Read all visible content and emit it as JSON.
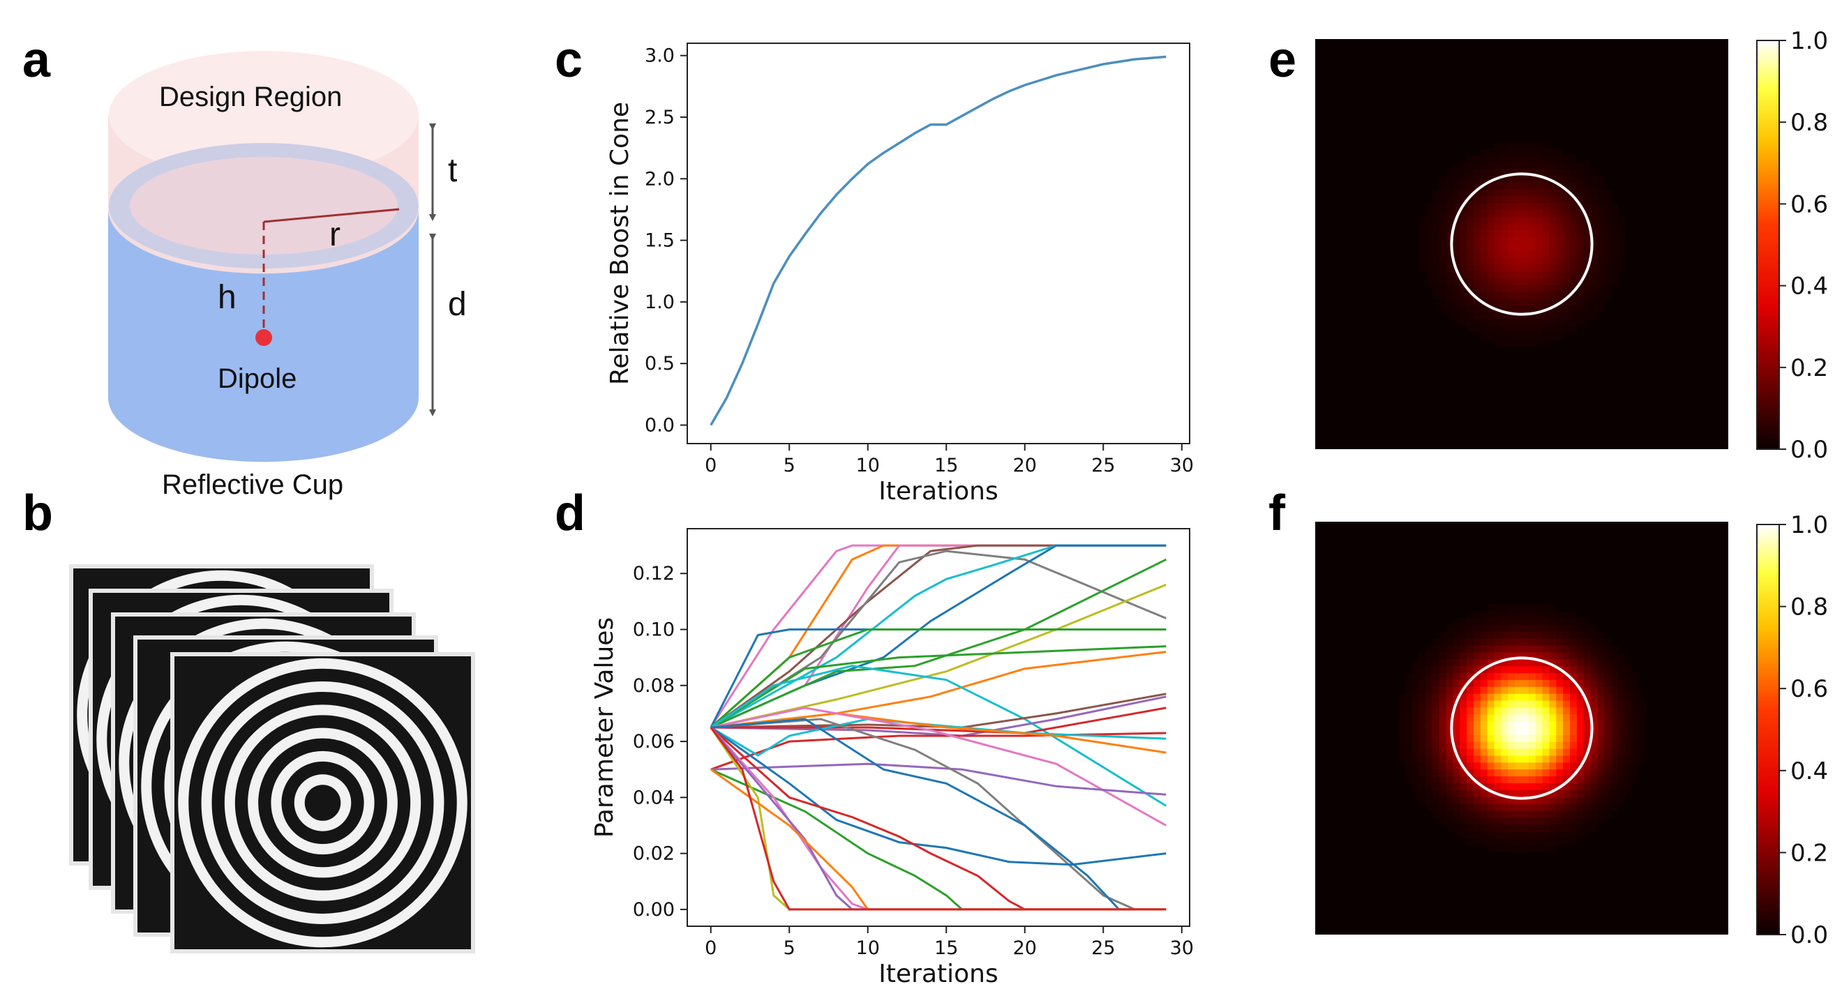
{
  "panels": {
    "a": {
      "letter": "a",
      "design_region": "Design Region",
      "dipole": "Dipole",
      "reflective_cup": "Reflective Cup",
      "dims": {
        "t": "t",
        "r": "r",
        "h": "h",
        "d": "d"
      }
    },
    "b": {
      "letter": "b",
      "ring_count": 6,
      "layers": 5
    },
    "c": {
      "letter": "c"
    },
    "d": {
      "letter": "d"
    },
    "e": {
      "letter": "e"
    },
    "f": {
      "letter": "f"
    }
  },
  "colors": {
    "line_blue": "#4c8fbe",
    "design_region_fill": "#f9dede",
    "cup_fill": "#9bbaf0",
    "ring": "#c9cce6",
    "dipole": "#e8323a",
    "dim_line": "#a03030",
    "arrow": "#555555"
  },
  "chart_data": [
    {
      "id": "c",
      "type": "line",
      "title": "",
      "xlabel": "Iterations",
      "ylabel": "Relative Boost in Cone",
      "xlim": [
        -1.5,
        30.5
      ],
      "ylim": [
        -0.15,
        3.1
      ],
      "xticks": [
        0,
        5,
        10,
        15,
        20,
        25,
        30
      ],
      "yticks": [
        0.0,
        0.5,
        1.0,
        1.5,
        2.0,
        2.5,
        3.0
      ],
      "ytick_labels": [
        "0.0",
        "0.5",
        "1.0",
        "1.5",
        "2.0",
        "2.5",
        "3.0"
      ],
      "x": [
        0,
        1,
        2,
        3,
        4,
        5,
        6,
        7,
        8,
        9,
        10,
        11,
        12,
        13,
        14,
        15,
        16,
        17,
        18,
        19,
        20,
        21,
        22,
        23,
        24,
        25,
        26,
        27,
        28,
        29
      ],
      "values": [
        0.0,
        0.22,
        0.5,
        0.82,
        1.15,
        1.37,
        1.55,
        1.72,
        1.87,
        2.0,
        2.12,
        2.21,
        2.29,
        2.37,
        2.44,
        2.44,
        2.51,
        2.58,
        2.65,
        2.71,
        2.76,
        2.8,
        2.84,
        2.87,
        2.9,
        2.93,
        2.95,
        2.97,
        2.98,
        2.99
      ]
    },
    {
      "id": "d",
      "type": "line",
      "title": "",
      "xlabel": "Iterations",
      "ylabel": "Parameter Values",
      "xlim": [
        -1.5,
        30.5
      ],
      "ylim": [
        -0.006,
        0.136
      ],
      "xticks": [
        0,
        5,
        10,
        15,
        20,
        25,
        30
      ],
      "yticks": [
        0.0,
        0.02,
        0.04,
        0.06,
        0.08,
        0.1,
        0.12
      ],
      "ytick_labels": [
        "0.00",
        "0.02",
        "0.04",
        "0.06",
        "0.08",
        "0.10",
        "0.12"
      ],
      "series": [
        {
          "color": "#e377c2",
          "values": [
            [
              0,
              0.065
            ],
            [
              4,
              0.1
            ],
            [
              8,
              0.128
            ],
            [
              9,
              0.13
            ],
            [
              29,
              0.13
            ]
          ]
        },
        {
          "color": "#ff7f0e",
          "values": [
            [
              0,
              0.065
            ],
            [
              5,
              0.09
            ],
            [
              9,
              0.125
            ],
            [
              11,
              0.13
            ],
            [
              29,
              0.13
            ]
          ]
        },
        {
          "color": "#e377c2",
          "values": [
            [
              0,
              0.065
            ],
            [
              6,
              0.08
            ],
            [
              10,
              0.115
            ],
            [
              12,
              0.13
            ],
            [
              29,
              0.13
            ]
          ]
        },
        {
          "color": "#8c564b",
          "values": [
            [
              0,
              0.065
            ],
            [
              5,
              0.085
            ],
            [
              10,
              0.11
            ],
            [
              14,
              0.128
            ],
            [
              17,
              0.13
            ],
            [
              29,
              0.13
            ]
          ]
        },
        {
          "color": "#7f7f7f",
          "values": [
            [
              0,
              0.065
            ],
            [
              7,
              0.09
            ],
            [
              12,
              0.124
            ],
            [
              15,
              0.128
            ],
            [
              20,
              0.125
            ],
            [
              29,
              0.104
            ]
          ]
        },
        {
          "color": "#17becf",
          "values": [
            [
              0,
              0.065
            ],
            [
              8,
              0.09
            ],
            [
              13,
              0.112
            ],
            [
              15,
              0.118
            ],
            [
              18,
              0.123
            ],
            [
              22,
              0.13
            ],
            [
              29,
              0.13
            ]
          ]
        },
        {
          "color": "#1f77b4",
          "values": [
            [
              0,
              0.065
            ],
            [
              3,
              0.098
            ],
            [
              5,
              0.1
            ],
            [
              29,
              0.1
            ]
          ]
        },
        {
          "color": "#1f77b4",
          "values": [
            [
              0,
              0.065
            ],
            [
              6,
              0.08
            ],
            [
              11,
              0.09
            ],
            [
              14,
              0.103
            ],
            [
              19,
              0.12
            ],
            [
              22,
              0.13
            ],
            [
              29,
              0.13
            ]
          ]
        },
        {
          "color": "#2ca02c",
          "values": [
            [
              0,
              0.065
            ],
            [
              8,
              0.085
            ],
            [
              13,
              0.087
            ],
            [
              20,
              0.1
            ],
            [
              29,
              0.125
            ]
          ]
        },
        {
          "color": "#bcbd22",
          "values": [
            [
              0,
              0.065
            ],
            [
              8,
              0.075
            ],
            [
              15,
              0.085
            ],
            [
              22,
              0.1
            ],
            [
              29,
              0.116
            ]
          ]
        },
        {
          "color": "#2ca02c",
          "values": [
            [
              0,
              0.065
            ],
            [
              6,
              0.086
            ],
            [
              12,
              0.09
            ],
            [
              29,
              0.094
            ]
          ]
        },
        {
          "color": "#ff7f0e",
          "values": [
            [
              0,
              0.065
            ],
            [
              8,
              0.07
            ],
            [
              14,
              0.076
            ],
            [
              20,
              0.086
            ],
            [
              29,
              0.092
            ]
          ]
        },
        {
          "color": "#2ca02c",
          "values": [
            [
              0,
              0.065
            ],
            [
              5,
              0.09
            ],
            [
              10,
              0.1
            ],
            [
              29,
              0.1
            ]
          ]
        },
        {
          "color": "#17becf",
          "values": [
            [
              0,
              0.065
            ],
            [
              4,
              0.08
            ],
            [
              9,
              0.087
            ],
            [
              15,
              0.082
            ],
            [
              20,
              0.068
            ],
            [
              29,
              0.037
            ]
          ]
        },
        {
          "color": "#8c564b",
          "values": [
            [
              0,
              0.065
            ],
            [
              10,
              0.066
            ],
            [
              16,
              0.065
            ],
            [
              22,
              0.07
            ],
            [
              29,
              0.077
            ]
          ]
        },
        {
          "color": "#9467bd",
          "values": [
            [
              0,
              0.065
            ],
            [
              10,
              0.064
            ],
            [
              16,
              0.062
            ],
            [
              22,
              0.068
            ],
            [
              29,
              0.076
            ]
          ]
        },
        {
          "color": "#d62728",
          "values": [
            [
              0,
              0.065
            ],
            [
              10,
              0.065
            ],
            [
              20,
              0.063
            ],
            [
              29,
              0.072
            ]
          ]
        },
        {
          "color": "#d62728",
          "values": [
            [
              0,
              0.05
            ],
            [
              5,
              0.06
            ],
            [
              12,
              0.062
            ],
            [
              20,
              0.062
            ],
            [
              29,
              0.063
            ]
          ]
        },
        {
          "color": "#17becf",
          "values": [
            [
              0,
              0.065
            ],
            [
              3,
              0.055
            ],
            [
              5,
              0.062
            ],
            [
              10,
              0.068
            ],
            [
              20,
              0.063
            ],
            [
              29,
              0.061
            ]
          ]
        },
        {
          "color": "#ff7f0e",
          "values": [
            [
              0,
              0.065
            ],
            [
              8,
              0.07
            ],
            [
              15,
              0.065
            ],
            [
              22,
              0.062
            ],
            [
              29,
              0.056
            ]
          ]
        },
        {
          "color": "#e377c2",
          "values": [
            [
              0,
              0.065
            ],
            [
              6,
              0.072
            ],
            [
              14,
              0.064
            ],
            [
              22,
              0.052
            ],
            [
              29,
              0.03
            ]
          ]
        },
        {
          "color": "#9467bd",
          "values": [
            [
              0,
              0.05
            ],
            [
              10,
              0.052
            ],
            [
              16,
              0.05
            ],
            [
              22,
              0.044
            ],
            [
              29,
              0.041
            ]
          ]
        },
        {
          "color": "#7f7f7f",
          "values": [
            [
              0,
              0.065
            ],
            [
              7,
              0.068
            ],
            [
              13,
              0.057
            ],
            [
              17,
              0.045
            ],
            [
              21,
              0.025
            ],
            [
              25,
              0.005
            ],
            [
              27,
              0.0
            ],
            [
              29,
              0.0
            ]
          ]
        },
        {
          "color": "#1f77b4",
          "values": [
            [
              0,
              0.065
            ],
            [
              6,
              0.068
            ],
            [
              11,
              0.05
            ],
            [
              15,
              0.045
            ],
            [
              20,
              0.03
            ],
            [
              24,
              0.012
            ],
            [
              26,
              0.0
            ],
            [
              29,
              0.0
            ]
          ]
        },
        {
          "color": "#1f77b4",
          "values": [
            [
              0,
              0.065
            ],
            [
              5,
              0.045
            ],
            [
              8,
              0.032
            ],
            [
              12,
              0.024
            ],
            [
              15,
              0.022
            ],
            [
              19,
              0.017
            ],
            [
              23,
              0.016
            ],
            [
              29,
              0.02
            ]
          ]
        },
        {
          "color": "#d62728",
          "values": [
            [
              0,
              0.065
            ],
            [
              5,
              0.04
            ],
            [
              9,
              0.033
            ],
            [
              12,
              0.026
            ],
            [
              14,
              0.02
            ],
            [
              17,
              0.012
            ],
            [
              19,
              0.003
            ],
            [
              20,
              0.0
            ],
            [
              29,
              0.0
            ]
          ]
        },
        {
          "color": "#2ca02c",
          "values": [
            [
              0,
              0.05
            ],
            [
              6,
              0.035
            ],
            [
              10,
              0.02
            ],
            [
              13,
              0.012
            ],
            [
              15,
              0.005
            ],
            [
              16,
              0.0
            ],
            [
              29,
              0.0
            ]
          ]
        },
        {
          "color": "#e377c2",
          "values": [
            [
              0,
              0.065
            ],
            [
              4,
              0.04
            ],
            [
              7,
              0.015
            ],
            [
              9,
              0.002
            ],
            [
              10,
              0.0
            ],
            [
              29,
              0.0
            ]
          ]
        },
        {
          "color": "#bcbd22",
          "values": [
            [
              0,
              0.065
            ],
            [
              3,
              0.04
            ],
            [
              4,
              0.005
            ],
            [
              5,
              0.0
            ],
            [
              29,
              0.0
            ]
          ]
        },
        {
          "color": "#9467bd",
          "values": [
            [
              0,
              0.065
            ],
            [
              3,
              0.045
            ],
            [
              6,
              0.025
            ],
            [
              8,
              0.005
            ],
            [
              9,
              0.0
            ],
            [
              29,
              0.0
            ]
          ]
        },
        {
          "color": "#ff7f0e",
          "values": [
            [
              0,
              0.05
            ],
            [
              5,
              0.03
            ],
            [
              9,
              0.008
            ],
            [
              10,
              0.0
            ],
            [
              29,
              0.0
            ]
          ]
        },
        {
          "color": "#d62728",
          "values": [
            [
              0,
              0.065
            ],
            [
              2,
              0.05
            ],
            [
              4,
              0.01
            ],
            [
              5,
              0.0
            ],
            [
              29,
              0.0
            ]
          ]
        }
      ]
    },
    {
      "id": "e",
      "type": "heatmap",
      "colormap": "hot",
      "colorbar_ticks": [
        "0.0",
        "0.2",
        "0.4",
        "0.6",
        "0.8",
        "1.0"
      ],
      "colorbar_range": [
        0.0,
        1.0
      ],
      "peak_value": 0.22,
      "spot_sigma": 0.1,
      "circle_radius": 0.17
    },
    {
      "id": "f",
      "type": "heatmap",
      "colormap": "hot",
      "colorbar_ticks": [
        "0.0",
        "0.2",
        "0.4",
        "0.6",
        "0.8",
        "1.0"
      ],
      "colorbar_range": [
        0.0,
        1.0
      ],
      "peak_value": 1.0,
      "spot_sigma": 0.1,
      "circle_radius": 0.17
    }
  ]
}
